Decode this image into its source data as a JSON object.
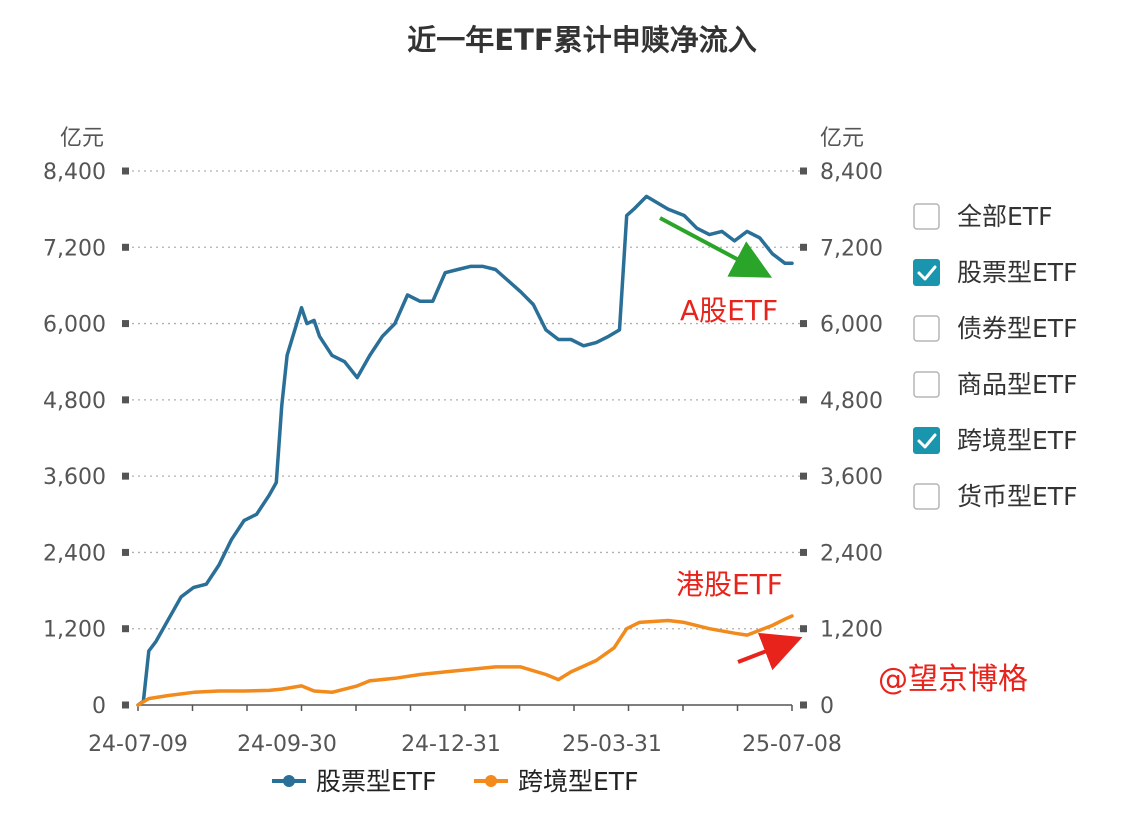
{
  "chart_data": {
    "type": "line",
    "title": "近一年ETF累计申赎净流入",
    "y_unit_left": "亿元",
    "y_unit_right": "亿元",
    "ylim": [
      0,
      8400
    ],
    "yticks": [
      "0",
      "1,200",
      "2,400",
      "3,600",
      "4,800",
      "6,000",
      "7,200",
      "8,400"
    ],
    "xlim": [
      "2024-07-09",
      "2025-07-08"
    ],
    "xtick_labels": [
      "24-07-09",
      "24-09-30",
      "24-12-31",
      "25-03-31",
      "25-07-08"
    ],
    "grid": true,
    "legend_position": "bottom",
    "series": [
      {
        "name": "股票型ETF",
        "color": "#2a6f97",
        "points": [
          [
            "2024-07-09",
            0
          ],
          [
            "2024-07-12",
            60
          ],
          [
            "2024-07-15",
            850
          ],
          [
            "2024-07-19",
            1000
          ],
          [
            "2024-07-26",
            1350
          ],
          [
            "2024-08-02",
            1700
          ],
          [
            "2024-08-09",
            1850
          ],
          [
            "2024-08-16",
            1900
          ],
          [
            "2024-08-23",
            2200
          ],
          [
            "2024-08-30",
            2600
          ],
          [
            "2024-09-06",
            2900
          ],
          [
            "2024-09-13",
            3000
          ],
          [
            "2024-09-20",
            3300
          ],
          [
            "2024-09-24",
            3500
          ],
          [
            "2024-09-27",
            4700
          ],
          [
            "2024-09-30",
            5500
          ],
          [
            "2024-10-08",
            6250
          ],
          [
            "2024-10-11",
            6000
          ],
          [
            "2024-10-15",
            6050
          ],
          [
            "2024-10-18",
            5800
          ],
          [
            "2024-10-25",
            5500
          ],
          [
            "2024-11-01",
            5400
          ],
          [
            "2024-11-08",
            5150
          ],
          [
            "2024-11-15",
            5500
          ],
          [
            "2024-11-22",
            5800
          ],
          [
            "2024-11-29",
            6000
          ],
          [
            "2024-12-06",
            6450
          ],
          [
            "2024-12-13",
            6350
          ],
          [
            "2024-12-20",
            6350
          ],
          [
            "2024-12-27",
            6800
          ],
          [
            "2025-01-03",
            6850
          ],
          [
            "2025-01-10",
            6900
          ],
          [
            "2025-01-17",
            6900
          ],
          [
            "2025-01-24",
            6850
          ],
          [
            "2025-02-07",
            6500
          ],
          [
            "2025-02-14",
            6300
          ],
          [
            "2025-02-21",
            5900
          ],
          [
            "2025-02-28",
            5750
          ],
          [
            "2025-03-07",
            5750
          ],
          [
            "2025-03-14",
            5650
          ],
          [
            "2025-03-21",
            5700
          ],
          [
            "2025-03-28",
            5800
          ],
          [
            "2025-04-03",
            5900
          ],
          [
            "2025-04-07",
            7700
          ],
          [
            "2025-04-11",
            7800
          ],
          [
            "2025-04-18",
            8000
          ],
          [
            "2025-04-30",
            7800
          ],
          [
            "2025-05-09",
            7700
          ],
          [
            "2025-05-16",
            7500
          ],
          [
            "2025-05-23",
            7400
          ],
          [
            "2025-05-30",
            7450
          ],
          [
            "2025-06-06",
            7300
          ],
          [
            "2025-06-13",
            7450
          ],
          [
            "2025-06-20",
            7350
          ],
          [
            "2025-06-27",
            7100
          ],
          [
            "2025-07-04",
            6950
          ],
          [
            "2025-07-08",
            6950
          ]
        ]
      },
      {
        "name": "跨境型ETF",
        "color": "#f28a1c",
        "points": [
          [
            "2024-07-09",
            0
          ],
          [
            "2024-07-15",
            100
          ],
          [
            "2024-07-26",
            150
          ],
          [
            "2024-08-09",
            200
          ],
          [
            "2024-08-23",
            220
          ],
          [
            "2024-09-06",
            220
          ],
          [
            "2024-09-20",
            230
          ],
          [
            "2024-09-27",
            250
          ],
          [
            "2024-10-08",
            300
          ],
          [
            "2024-10-15",
            220
          ],
          [
            "2024-10-25",
            200
          ],
          [
            "2024-11-08",
            300
          ],
          [
            "2024-11-15",
            380
          ],
          [
            "2024-11-29",
            420
          ],
          [
            "2024-12-13",
            480
          ],
          [
            "2024-12-27",
            520
          ],
          [
            "2025-01-10",
            560
          ],
          [
            "2025-01-24",
            600
          ],
          [
            "2025-02-07",
            600
          ],
          [
            "2025-02-21",
            480
          ],
          [
            "2025-02-28",
            400
          ],
          [
            "2025-03-07",
            520
          ],
          [
            "2025-03-21",
            700
          ],
          [
            "2025-03-31",
            900
          ],
          [
            "2025-04-07",
            1200
          ],
          [
            "2025-04-14",
            1300
          ],
          [
            "2025-04-30",
            1330
          ],
          [
            "2025-05-09",
            1300
          ],
          [
            "2025-05-23",
            1200
          ],
          [
            "2025-06-06",
            1130
          ],
          [
            "2025-06-13",
            1100
          ],
          [
            "2025-06-27",
            1250
          ],
          [
            "2025-07-04",
            1350
          ],
          [
            "2025-07-08",
            1400
          ]
        ]
      }
    ]
  },
  "filter": {
    "items": [
      {
        "label": "全部ETF",
        "checked": false
      },
      {
        "label": "股票型ETF",
        "checked": true
      },
      {
        "label": "债券型ETF",
        "checked": false
      },
      {
        "label": "商品型ETF",
        "checked": false
      },
      {
        "label": "跨境型ETF",
        "checked": true
      },
      {
        "label": "货币型ETF",
        "checked": false
      }
    ],
    "check_color": "#1995ad"
  },
  "annotations": {
    "a_share": {
      "text": "A股ETF",
      "color": "#e8231c",
      "arrow_color": "#2aa52a"
    },
    "hk_share": {
      "text": "港股ETF",
      "color": "#e8231c",
      "arrow_color": "#e8231c"
    }
  },
  "watermark": "@望京博格"
}
